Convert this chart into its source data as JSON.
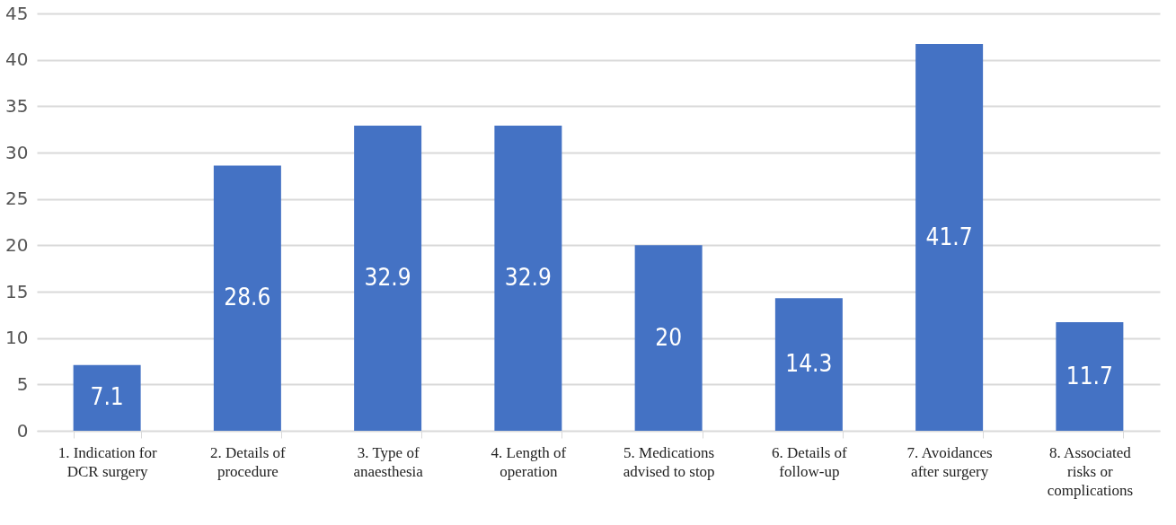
{
  "chart_data": {
    "type": "bar",
    "categories": [
      "1. Indication for DCR surgery",
      "2. Details of procedure",
      "3. Type of anaesthesia",
      "4. Length of operation",
      "5. Medications advised to stop",
      "6. Details of follow-up",
      "7. Avoidances after surgery",
      "8. Associated risks or complications"
    ],
    "values": [
      7.1,
      28.6,
      32.9,
      32.9,
      20,
      14.3,
      41.7,
      11.7
    ],
    "color": "#4472c4",
    "ylim": [
      0,
      45
    ],
    "yticks": [
      0,
      5,
      10,
      15,
      20,
      25,
      30,
      35,
      40,
      45
    ],
    "grid": "y",
    "data_labels": true
  }
}
